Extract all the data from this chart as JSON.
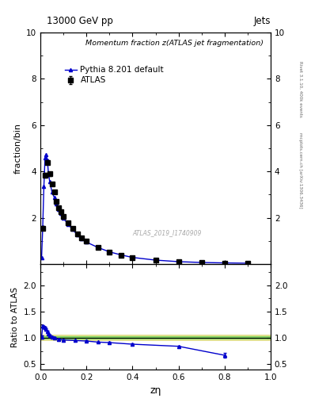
{
  "title_top": "13000 GeV pp",
  "title_right": "Jets",
  "plot_title": "Momentum fraction z(ATLAS jet fragmentation)",
  "xlabel": "zη",
  "ylabel_main": "fraction/bin",
  "ylabel_ratio": "Ratio to ATLAS",
  "right_label_top": "Rivet 3.1.10, 400k events",
  "right_label_bottom": "mcplots.cern.ch [arXiv:1306.3436]",
  "watermark": "ATLAS_2019_I1740909",
  "atlas_x": [
    0.01,
    0.02,
    0.03,
    0.04,
    0.05,
    0.06,
    0.07,
    0.08,
    0.09,
    0.1,
    0.12,
    0.14,
    0.16,
    0.18,
    0.2,
    0.25,
    0.3,
    0.35,
    0.4,
    0.5,
    0.6,
    0.7,
    0.8,
    0.9
  ],
  "atlas_y": [
    1.55,
    3.85,
    4.4,
    3.9,
    3.45,
    3.12,
    2.72,
    2.45,
    2.25,
    2.05,
    1.8,
    1.55,
    1.32,
    1.15,
    0.98,
    0.74,
    0.52,
    0.38,
    0.28,
    0.17,
    0.105,
    0.07,
    0.05,
    0.03
  ],
  "atlas_yerr": [
    0.08,
    0.1,
    0.09,
    0.08,
    0.07,
    0.06,
    0.06,
    0.05,
    0.04,
    0.04,
    0.03,
    0.03,
    0.03,
    0.02,
    0.02,
    0.015,
    0.012,
    0.01,
    0.008,
    0.006,
    0.005,
    0.004,
    0.003,
    0.003
  ],
  "pythia_x": [
    0.005,
    0.01,
    0.015,
    0.02,
    0.025,
    0.03,
    0.035,
    0.04,
    0.05,
    0.06,
    0.07,
    0.08,
    0.09,
    0.1,
    0.12,
    0.14,
    0.16,
    0.18,
    0.2,
    0.25,
    0.3,
    0.35,
    0.4,
    0.5,
    0.6,
    0.7,
    0.8,
    0.9
  ],
  "pythia_y": [
    0.28,
    1.6,
    3.35,
    4.6,
    4.72,
    4.5,
    3.9,
    3.58,
    3.12,
    2.88,
    2.62,
    2.38,
    2.18,
    1.98,
    1.73,
    1.5,
    1.27,
    1.1,
    0.95,
    0.72,
    0.53,
    0.4,
    0.29,
    0.175,
    0.108,
    0.072,
    0.054,
    0.04
  ],
  "ratio_pythia_x": [
    0.005,
    0.01,
    0.015,
    0.02,
    0.025,
    0.03,
    0.035,
    0.04,
    0.05,
    0.06,
    0.08,
    0.1,
    0.15,
    0.2,
    0.25,
    0.3,
    0.4,
    0.6,
    0.8
  ],
  "ratio_pythia_y": [
    1.02,
    1.22,
    1.21,
    1.19,
    1.16,
    1.12,
    1.08,
    1.05,
    1.02,
    1.0,
    0.97,
    0.96,
    0.95,
    0.94,
    0.92,
    0.91,
    0.88,
    0.84,
    0.67
  ],
  "ratio_pythia_yerr": [
    0.03,
    0.025,
    0.022,
    0.02,
    0.018,
    0.016,
    0.015,
    0.014,
    0.012,
    0.011,
    0.01,
    0.01,
    0.01,
    0.01,
    0.01,
    0.01,
    0.01,
    0.012,
    0.04
  ],
  "band_green_lo": 0.97,
  "band_green_hi": 1.03,
  "band_yellow_lo": 0.94,
  "band_yellow_hi": 1.06,
  "main_ylim": [
    0,
    10
  ],
  "main_yticks": [
    2,
    4,
    6,
    8,
    10
  ],
  "ratio_ylim": [
    0.4,
    2.4
  ],
  "ratio_yticks": [
    0.5,
    1.0,
    1.5,
    2.0
  ],
  "xlim": [
    0,
    1
  ],
  "color_atlas": "#000000",
  "color_pythia": "#0000cc",
  "color_band_green": "#44cc44",
  "color_band_yellow": "#cccc44",
  "background_color": "#ffffff"
}
